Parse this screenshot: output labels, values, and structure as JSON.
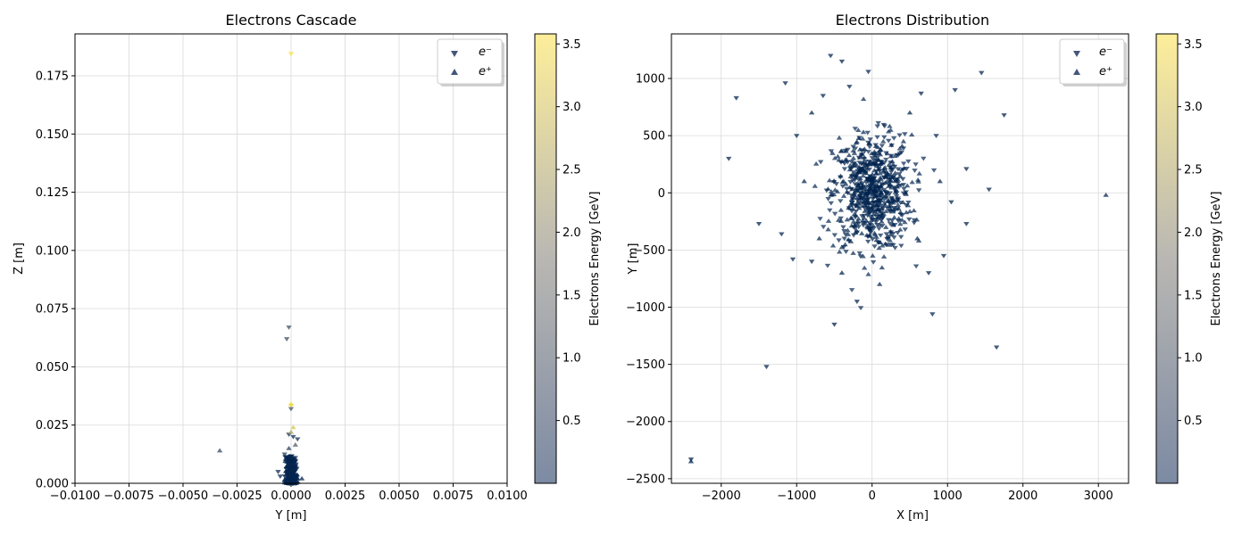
{
  "colors": {
    "colormap_low": "#00224e",
    "colormap_mid": "#7c7b78",
    "colormap_high": "#fee838",
    "grid": "#d9d9d9",
    "axis": "#000000"
  },
  "chart_data": [
    {
      "type": "scatter",
      "title": "Electrons Cascade",
      "xlabel": "Y [m]",
      "ylabel": "Z [m]",
      "xlim": [
        -0.01,
        0.01
      ],
      "ylim": [
        0,
        0.193
      ],
      "xticks": [
        -0.01,
        -0.0075,
        -0.005,
        -0.0025,
        0,
        0.0025,
        0.005,
        0.0075,
        0.01
      ],
      "xtick_labels": [
        "−0.0100",
        "−0.0075",
        "−0.0050",
        "−0.0025",
        "0.0000",
        "0.0025",
        "0.0050",
        "0.0075",
        "0.0100"
      ],
      "yticks": [
        0,
        0.025,
        0.05,
        0.075,
        0.1,
        0.125,
        0.15,
        0.175
      ],
      "ytick_labels": [
        "0.000",
        "0.025",
        "0.050",
        "0.075",
        "0.100",
        "0.125",
        "0.150",
        "0.175"
      ],
      "grid": true,
      "legend": {
        "location": "top-right",
        "entries": [
          "e⁻",
          "e⁺"
        ]
      },
      "colorbar": {
        "label": "Electrons Energy [GeV]",
        "range": [
          0.0,
          3.58
        ],
        "ticks": [
          0.5,
          1.0,
          1.5,
          2.0,
          2.5,
          3.0,
          3.5
        ],
        "tick_labels": [
          "0.5",
          "1.0",
          "1.5",
          "2.0",
          "2.5",
          "3.0",
          "3.5"
        ]
      },
      "series": [
        {
          "name": "e⁻",
          "marker": "triangle-down",
          "points": [
            [
              0.0,
              0.1845,
              3.5
            ],
            [
              -0.0001,
              0.067,
              0.9
            ],
            [
              -0.0002,
              0.062,
              0.9
            ],
            [
              0.0,
              0.0335,
              3.4
            ],
            [
              0.0,
              0.032,
              1.0
            ],
            [
              -0.0001,
              0.021,
              0.3
            ],
            [
              0.0001,
              0.02,
              0.2
            ],
            [
              0.0003,
              0.019,
              0.3
            ],
            [
              -0.0003,
              0.0125,
              0.5
            ],
            [
              0.0002,
              0.011,
              0.4
            ],
            [
              -0.0006,
              0.005,
              0.2
            ],
            [
              -0.0005,
              0.003,
              0.1
            ],
            [
              0.0,
              0.004,
              0.05
            ],
            [
              0.0001,
              0.002,
              0.1
            ],
            [
              -0.0001,
              0.008,
              0.2
            ],
            [
              0.0002,
              0.006,
              0.1
            ],
            [
              -0.0002,
              0.001,
              0.05
            ],
            [
              0.0,
              0.0005,
              0.02
            ]
          ]
        },
        {
          "name": "e⁺",
          "marker": "triangle-up",
          "points": [
            [
              -0.0033,
              0.014,
              0.8
            ],
            [
              0.0,
              0.034,
              3.3
            ],
            [
              0.0001,
              0.024,
              3.0
            ],
            [
              0.0,
              0.022,
              2.5
            ],
            [
              -0.0001,
              0.015,
              0.6
            ],
            [
              0.0001,
              0.009,
              0.3
            ],
            [
              -0.0002,
              0.007,
              0.2
            ],
            [
              0.0005,
              0.002,
              0.1
            ],
            [
              -0.0003,
              0.0015,
              0.1
            ],
            [
              0.0001,
              0.0035,
              0.05
            ],
            [
              0.0,
              0.0095,
              0.4
            ],
            [
              0.0002,
              0.0165,
              1.2
            ]
          ]
        }
      ]
    },
    {
      "type": "scatter",
      "title": "Electrons Distribution",
      "xlabel": "X [m]",
      "ylabel": "Y [m]",
      "xlim": [
        -2660,
        3400
      ],
      "ylim": [
        -2540,
        1390
      ],
      "xticks": [
        -2000,
        -1000,
        0,
        1000,
        2000,
        3000
      ],
      "xtick_labels": [
        "−2000",
        "−1000",
        "0",
        "1000",
        "2000",
        "3000"
      ],
      "yticks": [
        -2500,
        -2000,
        -1500,
        -1000,
        -500,
        0,
        500,
        1000
      ],
      "ytick_labels": [
        "−2500",
        "−2000",
        "−1500",
        "−1000",
        "−500",
        "0",
        "500",
        "1000"
      ],
      "grid": true,
      "legend": {
        "location": "top-right",
        "entries": [
          "e⁻",
          "e⁺"
        ]
      },
      "colorbar": {
        "label": "Electrons Energy [GeV]",
        "range": [
          0.0,
          3.58
        ],
        "ticks": [
          0.5,
          1.0,
          1.5,
          2.0,
          2.5,
          3.0,
          3.5
        ],
        "tick_labels": [
          "0.5",
          "1.0",
          "1.5",
          "2.0",
          "2.5",
          "3.0",
          "3.5"
        ]
      },
      "series": [
        {
          "name": "e⁻",
          "marker": "triangle-down",
          "points": [
            [
              -550,
              1200,
              0.1
            ],
            [
              -400,
              1150,
              0.1
            ],
            [
              -1800,
              830,
              0.1
            ],
            [
              -1150,
              960,
              0.1
            ],
            [
              -1900,
              300,
              0.1
            ],
            [
              -1500,
              -270,
              0.1
            ],
            [
              -1400,
              -1520,
              0.1
            ],
            [
              -2400,
              -2330,
              0.05
            ],
            [
              -500,
              -1150,
              0.05
            ],
            [
              -200,
              -950,
              0.1
            ],
            [
              800,
              -1060,
              0.1
            ],
            [
              1650,
              -1350,
              0.1
            ],
            [
              1450,
              1050,
              0.1
            ],
            [
              1100,
              900,
              0.1
            ],
            [
              1750,
              680,
              0.05
            ],
            [
              1250,
              210,
              0.1
            ],
            [
              1550,
              30,
              0.1
            ],
            [
              1250,
              -270,
              0.1
            ],
            [
              950,
              -550,
              0.1
            ],
            [
              750,
              -700,
              0.1
            ],
            [
              -800,
              -600,
              0.1
            ],
            [
              -650,
              850,
              0.1
            ],
            [
              -300,
              930,
              0.1
            ],
            [
              650,
              870,
              0.1
            ],
            [
              -50,
              1060,
              0.1
            ],
            [
              -1000,
              500,
              0.1
            ],
            [
              -1200,
              -360,
              0.1
            ],
            [
              -1050,
              -580,
              0.1
            ],
            [
              850,
              500,
              0.1
            ],
            [
              1050,
              -80,
              0.1
            ]
          ]
        },
        {
          "name": "e⁺",
          "marker": "triangle-up",
          "points": [
            [
              3100,
              -20,
              0.1
            ],
            [
              -2400,
              -2350,
              0.05
            ],
            [
              -800,
              700,
              0.1
            ],
            [
              -700,
              -400,
              0.1
            ],
            [
              500,
              700,
              0.1
            ],
            [
              -400,
              -700,
              0.1
            ],
            [
              600,
              -400,
              0.1
            ],
            [
              -900,
              100,
              0.1
            ],
            [
              900,
              100,
              0.1
            ],
            [
              100,
              -800,
              0.1
            ]
          ]
        }
      ],
      "cluster": {
        "center": [
          0,
          0
        ],
        "spread": [
          260,
          250
        ],
        "count": 720,
        "energy": 0.03
      }
    }
  ]
}
